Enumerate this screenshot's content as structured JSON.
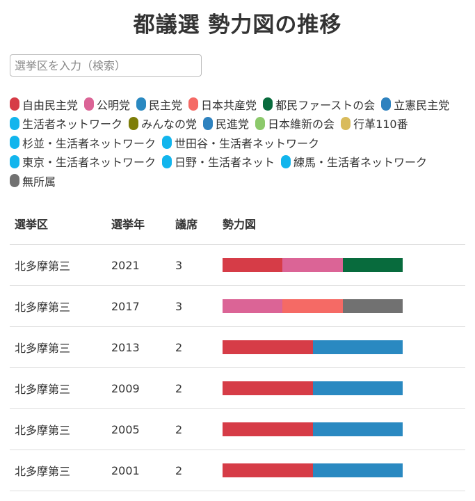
{
  "title": "都議選 勢力図の推移",
  "search": {
    "placeholder": "選挙区を入力（検索）",
    "value": ""
  },
  "legend": [
    {
      "label": "自由民主党",
      "color": "#d63c47"
    },
    {
      "label": "公明党",
      "color": "#db6496"
    },
    {
      "label": "民主党",
      "color": "#2a89c1"
    },
    {
      "label": "日本共産党",
      "color": "#f56a65"
    },
    {
      "label": "都民ファーストの会",
      "color": "#086b3d"
    },
    {
      "label": "立憲民主党",
      "color": "#2e82bf"
    },
    {
      "label": "生活者ネットワーク",
      "color": "#12b5ed"
    },
    {
      "label": "みんなの党",
      "color": "#7d7d08"
    },
    {
      "label": "民進党",
      "color": "#2e82bf"
    },
    {
      "label": "日本維新の会",
      "color": "#8cc96b"
    },
    {
      "label": "行革110番",
      "color": "#d9bb5b"
    },
    {
      "label": "杉並・生活者ネットワーク",
      "color": "#12b5ed"
    },
    {
      "label": "世田谷・生活者ネットワーク",
      "color": "#12b5ed"
    },
    {
      "label": "東京・生活者ネットワーク",
      "color": "#12b5ed"
    },
    {
      "label": "日野・生活者ネット",
      "color": "#12b5ed"
    },
    {
      "label": "練馬・生活者ネットワーク",
      "color": "#12b5ed"
    },
    {
      "label": "無所属",
      "color": "#717171"
    }
  ],
  "table": {
    "headers": {
      "district": "選挙区",
      "year": "選挙年",
      "seats": "議席",
      "chart": "勢力図"
    },
    "rows": [
      {
        "district": "北多摩第三",
        "year": "2021",
        "seats": "3",
        "parties": [
          "自由民主党",
          "公明党",
          "都民ファーストの会"
        ]
      },
      {
        "district": "北多摩第三",
        "year": "2017",
        "seats": "3",
        "parties": [
          "公明党",
          "日本共産党",
          "無所属"
        ]
      },
      {
        "district": "北多摩第三",
        "year": "2013",
        "seats": "2",
        "parties": [
          "自由民主党",
          "民主党"
        ]
      },
      {
        "district": "北多摩第三",
        "year": "2009",
        "seats": "2",
        "parties": [
          "自由民主党",
          "民主党"
        ]
      },
      {
        "district": "北多摩第三",
        "year": "2005",
        "seats": "2",
        "parties": [
          "自由民主党",
          "民主党"
        ]
      },
      {
        "district": "北多摩第三",
        "year": "2001",
        "seats": "2",
        "parties": [
          "自由民主党",
          "民主党"
        ]
      }
    ]
  }
}
